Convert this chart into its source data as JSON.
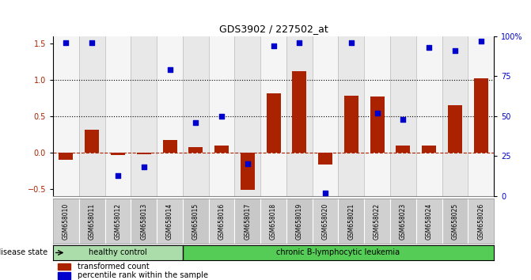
{
  "title": "GDS3902 / 227502_at",
  "samples": [
    "GSM658010",
    "GSM658011",
    "GSM658012",
    "GSM658013",
    "GSM658014",
    "GSM658015",
    "GSM658016",
    "GSM658017",
    "GSM658018",
    "GSM658019",
    "GSM658020",
    "GSM658021",
    "GSM658022",
    "GSM658023",
    "GSM658024",
    "GSM658025",
    "GSM658026"
  ],
  "bar_values": [
    -0.1,
    0.31,
    -0.03,
    -0.02,
    0.17,
    0.07,
    0.1,
    -0.52,
    0.82,
    1.12,
    -0.17,
    0.78,
    0.77,
    0.1,
    0.1,
    0.65,
    1.02
  ],
  "dot_right_pct": [
    96,
    96,
    13,
    18,
    79,
    46,
    50,
    20,
    94,
    96,
    2,
    96,
    52,
    48,
    93,
    91,
    97
  ],
  "bar_color": "#aa2200",
  "dot_color": "#0000cc",
  "healthy_control_count": 5,
  "ylim": [
    -0.6,
    1.6
  ],
  "yticks_left": [
    -0.5,
    0.0,
    0.5,
    1.0,
    1.5
  ],
  "yticks_right": [
    0,
    25,
    50,
    75,
    100
  ],
  "ytick_labels_right": [
    "0",
    "25",
    "50",
    "75",
    "100%"
  ],
  "hline_y": 0.0,
  "dotted_lines": [
    0.5,
    1.0
  ],
  "group1_label": "healthy control",
  "group2_label": "chronic B-lymphocytic leukemia",
  "disease_state_label": "disease state",
  "legend_bar_label": "transformed count",
  "legend_dot_label": "percentile rank within the sample",
  "group1_color": "#aaddaa",
  "group2_color": "#55cc55",
  "col_bg_even": "#f5f5f5",
  "col_bg_odd": "#e8e8e8"
}
